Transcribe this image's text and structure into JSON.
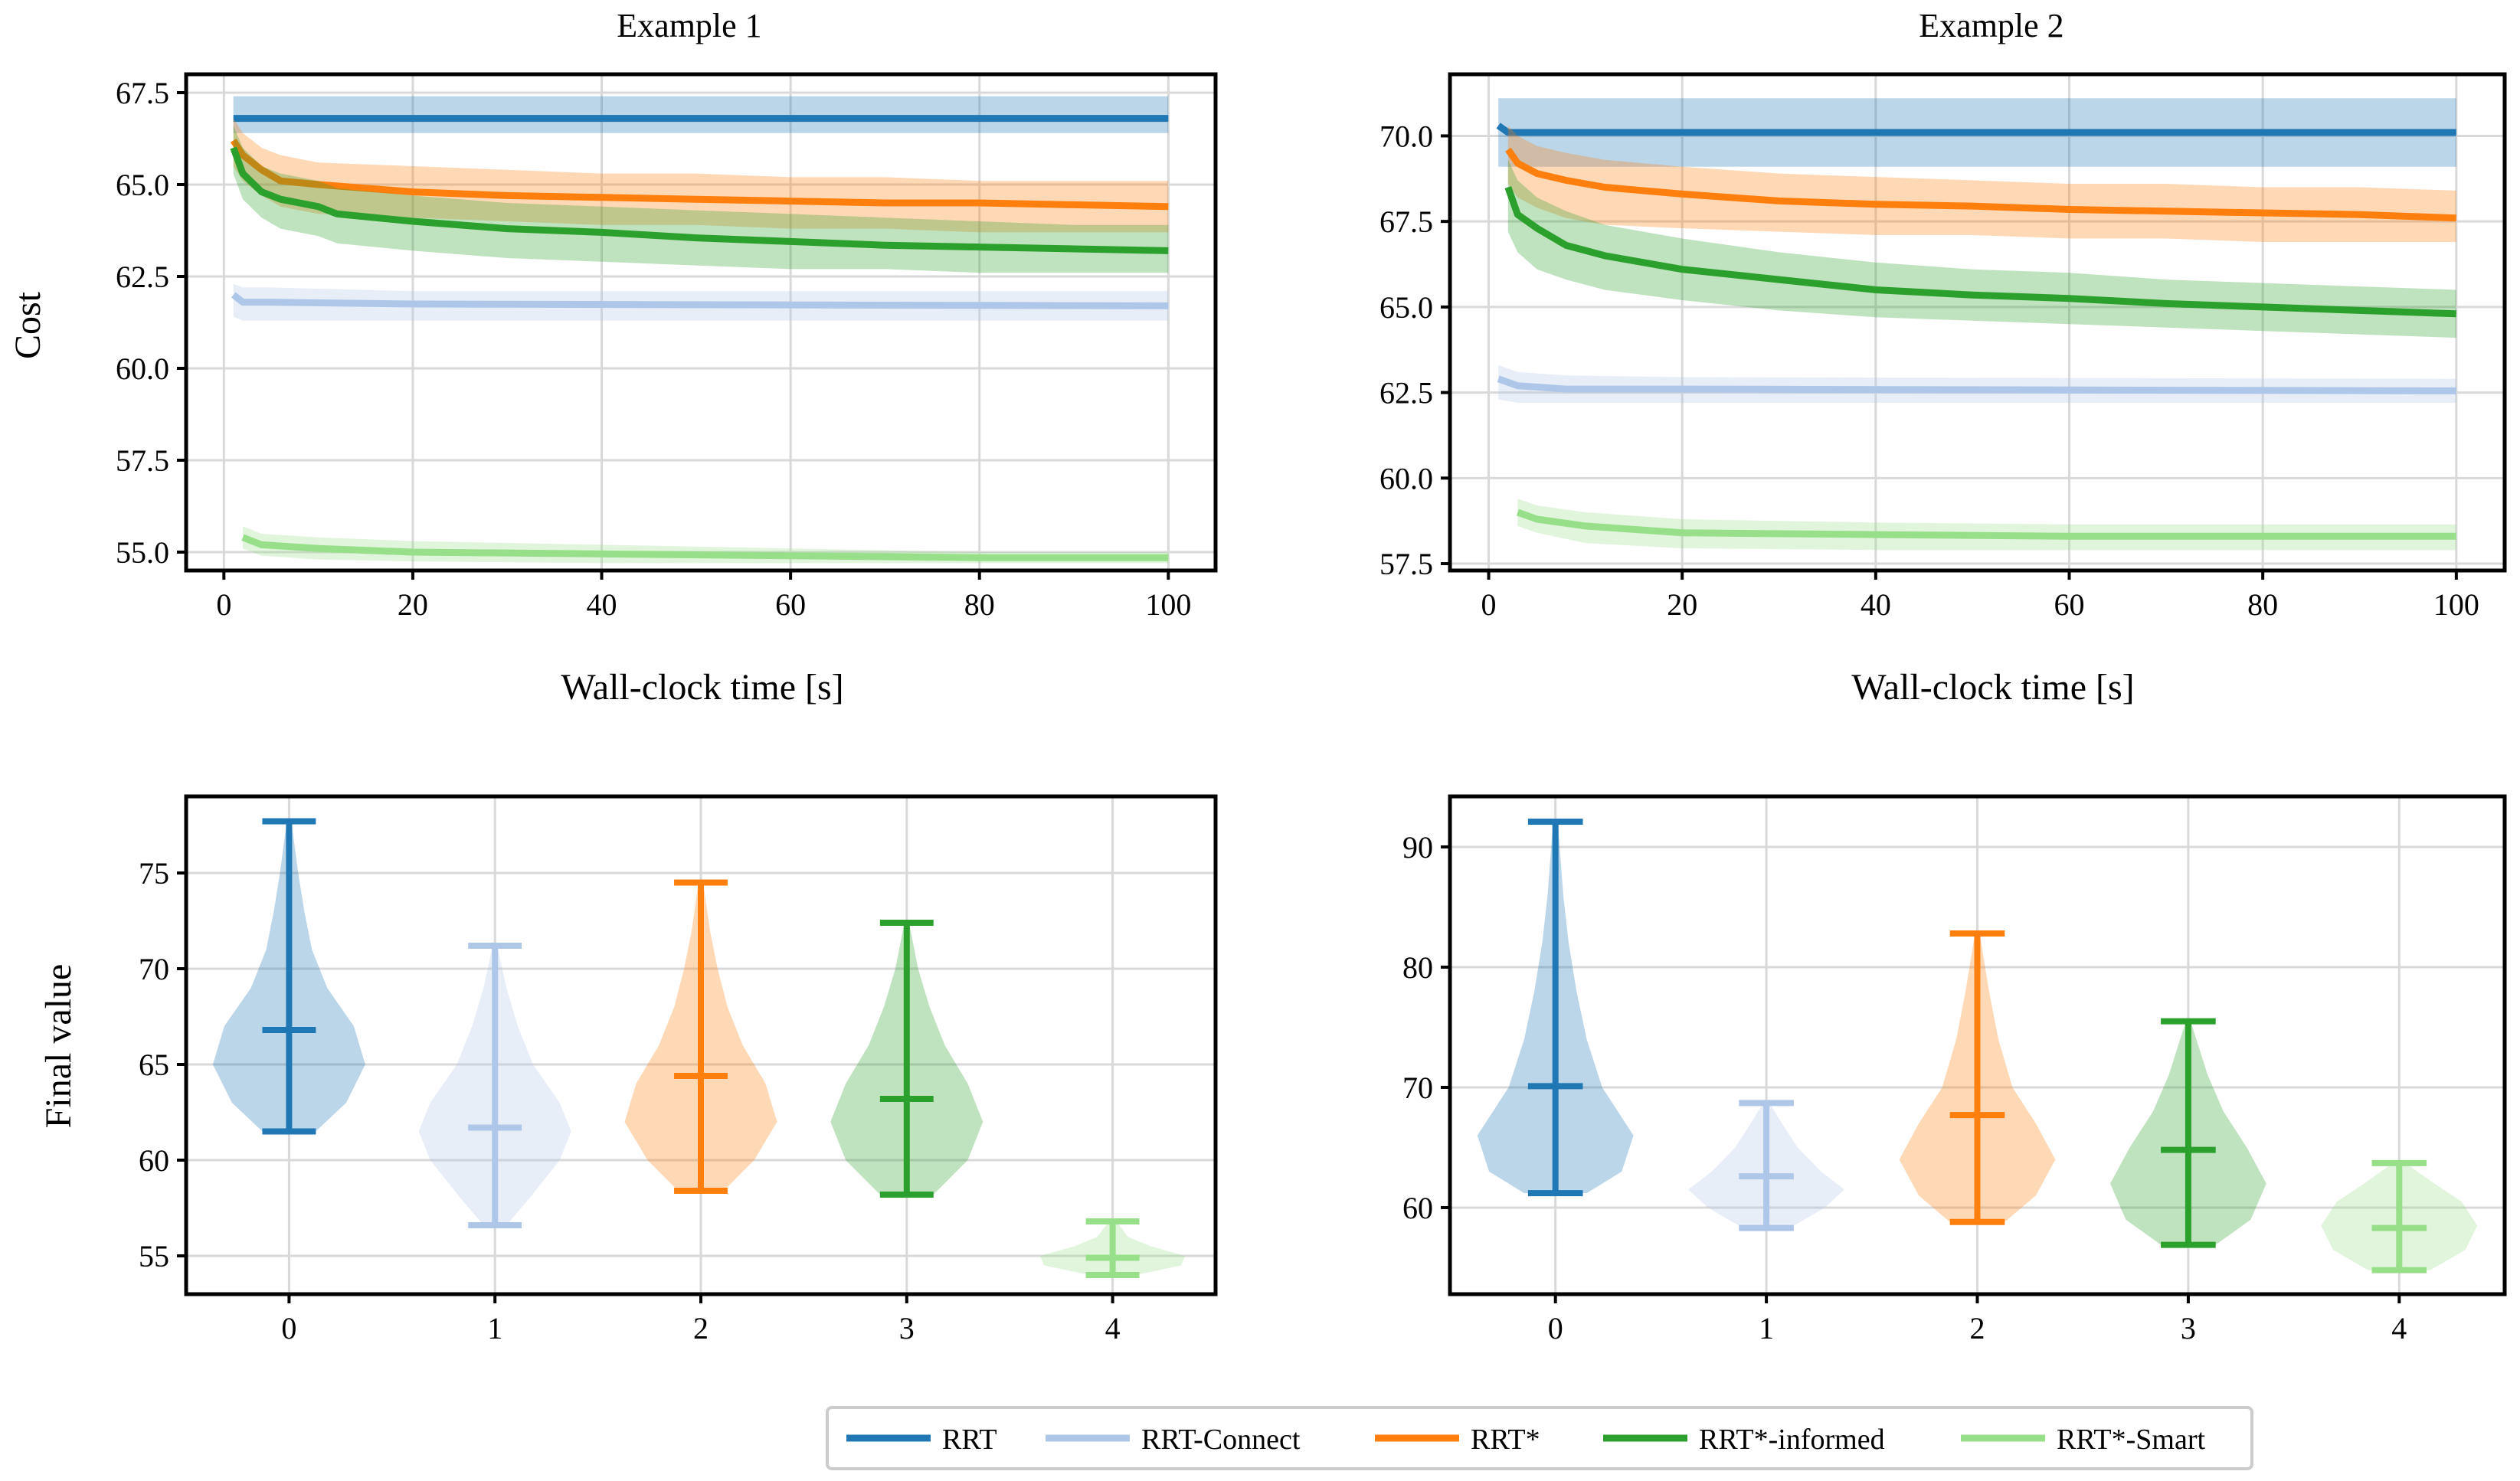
{
  "colors": {
    "RRT": "#1f77b4",
    "RRT-Connect": "#aec7e8",
    "RRT*": "#ff7f0e",
    "RRT*-informed": "#2ca02c",
    "RRT*-Smart": "#98df8a"
  },
  "legend": [
    "RRT",
    "RRT-Connect",
    "RRT*",
    "RRT*-informed",
    "RRT*-Smart"
  ],
  "chart_data": [
    {
      "id": "line1",
      "type": "line",
      "title": "Example 1",
      "xlabel": "Wall-clock time [s]",
      "ylabel": "Cost",
      "xlim": [
        -4,
        105
      ],
      "ylim": [
        54.5,
        68.0
      ],
      "xticks": [
        0,
        20,
        40,
        60,
        80,
        100
      ],
      "yticks": [
        55.0,
        57.5,
        60.0,
        62.5,
        65.0,
        67.5
      ],
      "ytick_labels": [
        "55.0",
        "57.5",
        "60.0",
        "62.5",
        "65.0",
        "67.5"
      ],
      "series": [
        {
          "name": "RRT",
          "x": [
            1,
            100
          ],
          "y": [
            66.8,
            66.8
          ],
          "lo": [
            66.4,
            66.4
          ],
          "hi": [
            67.4,
            67.4
          ]
        },
        {
          "name": "RRT-Connect",
          "x": [
            1,
            2,
            5,
            20,
            100
          ],
          "y": [
            62.0,
            61.8,
            61.8,
            61.75,
            61.7
          ],
          "lo": [
            61.4,
            61.3,
            61.3,
            61.3,
            61.3
          ],
          "hi": [
            62.3,
            62.2,
            62.2,
            62.1,
            62.1
          ]
        },
        {
          "name": "RRT*",
          "x": [
            1,
            2,
            4,
            6,
            10,
            20,
            30,
            40,
            50,
            60,
            70,
            80,
            90,
            100
          ],
          "y": [
            66.2,
            65.8,
            65.4,
            65.1,
            65.0,
            64.8,
            64.7,
            64.65,
            64.6,
            64.55,
            64.5,
            64.5,
            64.45,
            64.4
          ],
          "lo": [
            65.5,
            65.1,
            64.7,
            64.4,
            64.2,
            64.1,
            64.0,
            63.9,
            63.9,
            63.8,
            63.8,
            63.7,
            63.7,
            63.7
          ],
          "hi": [
            66.8,
            66.4,
            66.0,
            65.8,
            65.6,
            65.5,
            65.4,
            65.3,
            65.3,
            65.2,
            65.2,
            65.1,
            65.1,
            65.1
          ]
        },
        {
          "name": "RRT*-informed",
          "x": [
            1,
            2,
            4,
            6,
            10,
            12,
            20,
            30,
            40,
            50,
            60,
            70,
            80,
            90,
            100
          ],
          "y": [
            66.0,
            65.3,
            64.8,
            64.6,
            64.4,
            64.2,
            64.0,
            63.8,
            63.7,
            63.55,
            63.45,
            63.35,
            63.3,
            63.25,
            63.2
          ],
          "lo": [
            65.3,
            64.6,
            64.1,
            63.8,
            63.6,
            63.4,
            63.2,
            63.0,
            62.9,
            62.8,
            62.7,
            62.7,
            62.6,
            62.6,
            62.6
          ],
          "hi": [
            66.6,
            66.0,
            65.5,
            65.3,
            65.1,
            64.9,
            64.7,
            64.5,
            64.4,
            64.3,
            64.2,
            64.1,
            64.0,
            63.9,
            63.9
          ]
        },
        {
          "name": "RRT*-Smart",
          "x": [
            2,
            4,
            10,
            20,
            40,
            60,
            80,
            100
          ],
          "y": [
            55.4,
            55.2,
            55.1,
            55.0,
            54.95,
            54.9,
            54.85,
            54.85
          ],
          "lo": [
            55.1,
            54.9,
            54.8,
            54.75,
            54.7,
            54.7,
            54.7,
            54.7
          ],
          "hi": [
            55.7,
            55.5,
            55.4,
            55.3,
            55.2,
            55.1,
            55.0,
            55.0
          ]
        }
      ]
    },
    {
      "id": "line2",
      "type": "line",
      "title": "Example 2",
      "xlabel": "Wall-clock time [s]",
      "ylabel": "",
      "xlim": [
        -4,
        105
      ],
      "ylim": [
        57.3,
        71.8
      ],
      "xticks": [
        0,
        20,
        40,
        60,
        80,
        100
      ],
      "yticks": [
        57.5,
        60.0,
        62.5,
        65.0,
        67.5,
        70.0
      ],
      "ytick_labels": [
        "57.5",
        "60.0",
        "62.5",
        "65.0",
        "67.5",
        "70.0"
      ],
      "series": [
        {
          "name": "RRT",
          "x": [
            1,
            2,
            5,
            100
          ],
          "y": [
            70.3,
            70.1,
            70.1,
            70.1
          ],
          "lo": [
            69.1,
            69.1,
            69.1,
            69.1
          ],
          "hi": [
            71.1,
            71.1,
            71.1,
            71.1
          ]
        },
        {
          "name": "RRT-Connect",
          "x": [
            1,
            3,
            8,
            20,
            100
          ],
          "y": [
            62.9,
            62.7,
            62.6,
            62.6,
            62.55
          ],
          "lo": [
            62.3,
            62.2,
            62.2,
            62.2,
            62.2
          ],
          "hi": [
            63.3,
            63.1,
            63.0,
            62.95,
            62.9
          ]
        },
        {
          "name": "RRT*",
          "x": [
            2,
            3,
            5,
            8,
            12,
            20,
            30,
            40,
            50,
            60,
            70,
            80,
            90,
            100
          ],
          "y": [
            69.6,
            69.2,
            68.9,
            68.7,
            68.5,
            68.3,
            68.1,
            68.0,
            67.95,
            67.85,
            67.8,
            67.75,
            67.7,
            67.6
          ],
          "lo": [
            68.6,
            68.2,
            67.9,
            67.6,
            67.4,
            67.3,
            67.2,
            67.1,
            67.1,
            67.0,
            67.0,
            66.9,
            66.9,
            66.9
          ],
          "hi": [
            70.3,
            70.0,
            69.7,
            69.5,
            69.3,
            69.1,
            68.9,
            68.8,
            68.7,
            68.6,
            68.6,
            68.5,
            68.5,
            68.4
          ]
        },
        {
          "name": "RRT*-informed",
          "x": [
            2,
            3,
            5,
            8,
            12,
            20,
            30,
            40,
            50,
            60,
            70,
            80,
            90,
            100
          ],
          "y": [
            68.5,
            67.7,
            67.3,
            66.8,
            66.5,
            66.1,
            65.8,
            65.5,
            65.35,
            65.25,
            65.1,
            65.0,
            64.9,
            64.8
          ],
          "lo": [
            67.2,
            66.6,
            66.1,
            65.8,
            65.5,
            65.2,
            64.9,
            64.7,
            64.6,
            64.5,
            64.4,
            64.3,
            64.2,
            64.1
          ],
          "hi": [
            69.3,
            68.7,
            68.2,
            67.8,
            67.4,
            67.0,
            66.6,
            66.3,
            66.1,
            66.0,
            65.8,
            65.7,
            65.6,
            65.5
          ]
        },
        {
          "name": "RRT*-Smart",
          "x": [
            3,
            5,
            10,
            20,
            40,
            60,
            80,
            100
          ],
          "y": [
            59.0,
            58.8,
            58.6,
            58.4,
            58.35,
            58.3,
            58.3,
            58.3
          ],
          "lo": [
            58.6,
            58.4,
            58.1,
            57.95,
            57.9,
            57.9,
            57.9,
            57.9
          ],
          "hi": [
            59.4,
            59.2,
            59.0,
            58.8,
            58.7,
            58.65,
            58.65,
            58.65
          ]
        }
      ]
    },
    {
      "id": "violin1",
      "type": "violin",
      "ylabel": "Final value",
      "xticks": [
        0,
        1,
        2,
        3,
        4
      ],
      "ylim": [
        53.0,
        79.0
      ],
      "yticks": [
        55,
        60,
        65,
        70,
        75
      ],
      "violins": [
        {
          "name": "RRT",
          "min": 61.5,
          "max": 77.7,
          "median": 66.8,
          "profile": [
            [
              61.5,
              0.35
            ],
            [
              63,
              0.75
            ],
            [
              65,
              1.0
            ],
            [
              67,
              0.85
            ],
            [
              69,
              0.5
            ],
            [
              71,
              0.3
            ],
            [
              73,
              0.2
            ],
            [
              75,
              0.12
            ],
            [
              77.7,
              0.03
            ]
          ]
        },
        {
          "name": "RRT-Connect",
          "min": 56.6,
          "max": 71.2,
          "median": 61.7,
          "profile": [
            [
              56.6,
              0.15
            ],
            [
              58,
              0.45
            ],
            [
              60,
              0.85
            ],
            [
              61.5,
              1.0
            ],
            [
              63,
              0.85
            ],
            [
              65,
              0.5
            ],
            [
              67,
              0.3
            ],
            [
              69,
              0.15
            ],
            [
              71.2,
              0.03
            ]
          ]
        },
        {
          "name": "RRT*",
          "min": 58.4,
          "max": 74.5,
          "median": 64.4,
          "profile": [
            [
              58.4,
              0.3
            ],
            [
              60,
              0.7
            ],
            [
              62,
              1.0
            ],
            [
              64,
              0.85
            ],
            [
              66,
              0.55
            ],
            [
              68,
              0.35
            ],
            [
              70,
              0.22
            ],
            [
              72,
              0.12
            ],
            [
              74.5,
              0.03
            ]
          ]
        },
        {
          "name": "RRT*-informed",
          "min": 58.2,
          "max": 72.4,
          "median": 63.2,
          "profile": [
            [
              58.2,
              0.35
            ],
            [
              60,
              0.8
            ],
            [
              62,
              1.0
            ],
            [
              64,
              0.8
            ],
            [
              66,
              0.5
            ],
            [
              68,
              0.3
            ],
            [
              70,
              0.15
            ],
            [
              72.4,
              0.03
            ]
          ]
        },
        {
          "name": "RRT*-Smart",
          "min": 54.0,
          "max": 56.8,
          "median": 54.9,
          "profile": [
            [
              54.0,
              0.3
            ],
            [
              54.5,
              0.9
            ],
            [
              55.0,
              0.95
            ],
            [
              55.5,
              0.5
            ],
            [
              56.0,
              0.2
            ],
            [
              56.8,
              0.05
            ]
          ]
        }
      ]
    },
    {
      "id": "violin2",
      "type": "violin",
      "ylabel": "",
      "xticks": [
        0,
        1,
        2,
        3,
        4
      ],
      "ylim": [
        52.8,
        94.2
      ],
      "yticks": [
        60,
        70,
        80,
        90
      ],
      "violins": [
        {
          "name": "RRT",
          "min": 61.2,
          "max": 92.1,
          "median": 70.1,
          "profile": [
            [
              61.2,
              0.4
            ],
            [
              63,
              0.85
            ],
            [
              66,
              1.0
            ],
            [
              70,
              0.6
            ],
            [
              74,
              0.4
            ],
            [
              78,
              0.27
            ],
            [
              82,
              0.17
            ],
            [
              86,
              0.1
            ],
            [
              92.1,
              0.03
            ]
          ]
        },
        {
          "name": "RRT-Connect",
          "min": 58.3,
          "max": 68.7,
          "median": 62.6,
          "profile": [
            [
              58.3,
              0.3
            ],
            [
              60,
              0.75
            ],
            [
              61.5,
              1.0
            ],
            [
              63,
              0.7
            ],
            [
              65,
              0.4
            ],
            [
              67,
              0.2
            ],
            [
              68.7,
              0.04
            ]
          ]
        },
        {
          "name": "RRT*",
          "min": 58.8,
          "max": 82.8,
          "median": 67.7,
          "profile": [
            [
              58.8,
              0.35
            ],
            [
              61,
              0.75
            ],
            [
              64,
              1.0
            ],
            [
              67,
              0.75
            ],
            [
              70,
              0.45
            ],
            [
              74,
              0.27
            ],
            [
              78,
              0.15
            ],
            [
              82.8,
              0.03
            ]
          ]
        },
        {
          "name": "RRT*-informed",
          "min": 56.9,
          "max": 75.5,
          "median": 64.8,
          "profile": [
            [
              56.9,
              0.35
            ],
            [
              59,
              0.8
            ],
            [
              62,
              1.0
            ],
            [
              65,
              0.75
            ],
            [
              68,
              0.45
            ],
            [
              71,
              0.25
            ],
            [
              75.5,
              0.03
            ]
          ]
        },
        {
          "name": "RRT*-Smart",
          "min": 54.8,
          "max": 63.7,
          "median": 58.3,
          "profile": [
            [
              54.8,
              0.4
            ],
            [
              56.5,
              0.85
            ],
            [
              58.5,
              1.0
            ],
            [
              60.5,
              0.8
            ],
            [
              62,
              0.45
            ],
            [
              63.7,
              0.08
            ]
          ]
        }
      ]
    }
  ]
}
